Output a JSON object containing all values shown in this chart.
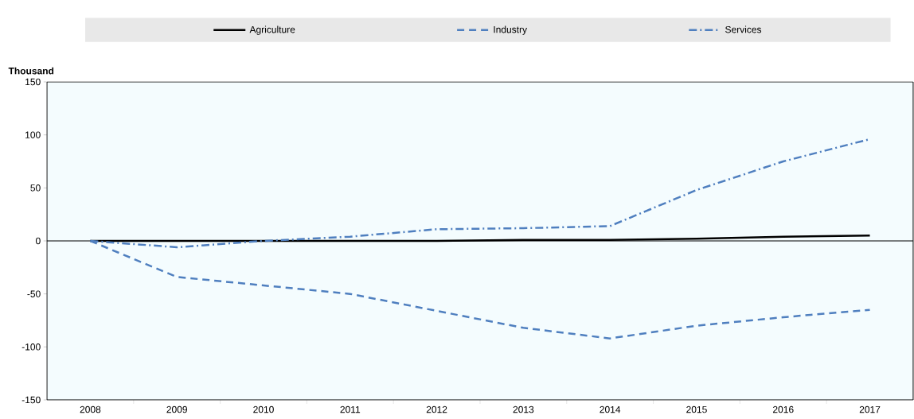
{
  "chart_data": {
    "type": "line",
    "ylabel": "Thousand",
    "categories": [
      "2008",
      "2009",
      "2010",
      "2011",
      "2012",
      "2013",
      "2014",
      "2015",
      "2016",
      "2017"
    ],
    "series": [
      {
        "name": "Agriculture",
        "color": "#000000",
        "line_style": "solid",
        "values": [
          0,
          0,
          0,
          0,
          0,
          1,
          1,
          2,
          4,
          5
        ]
      },
      {
        "name": "Industry",
        "color": "#4f7fbf",
        "line_style": "dashed",
        "values": [
          0,
          -34,
          -42,
          -50,
          -66,
          -82,
          -92,
          -80,
          -72,
          -65
        ]
      },
      {
        "name": "Services",
        "color": "#4f7fbf",
        "line_style": "dashdot",
        "values": [
          0,
          -6,
          0,
          4,
          11,
          12,
          14,
          48,
          75,
          96
        ]
      }
    ],
    "ylim": [
      -150,
      150
    ],
    "yticks": [
      -150,
      -100,
      -50,
      0,
      50,
      100,
      150
    ],
    "ref_lines": [
      {
        "axis": "y",
        "value": 0,
        "color": "#000000"
      }
    ],
    "legend": "top",
    "grid": false
  }
}
